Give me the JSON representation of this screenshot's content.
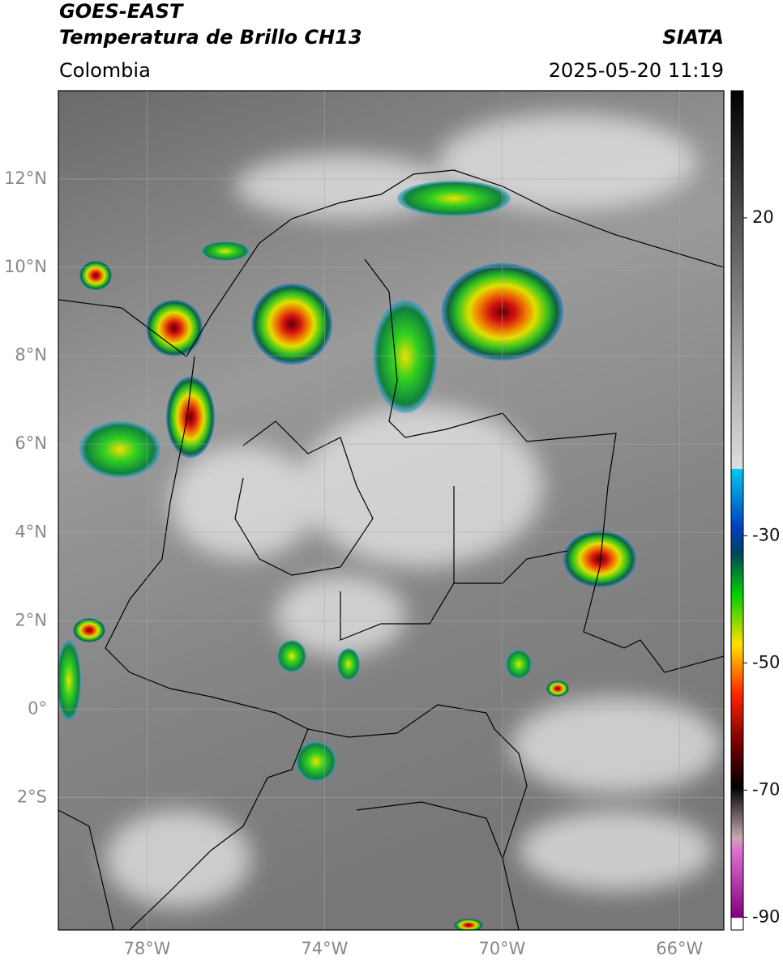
{
  "header": {
    "title": "GOES-EAST",
    "subtitle": "Temperatura de Brillo CH13",
    "source": "SIATA",
    "region": "Colombia",
    "timestamp": "2025-05-20 11:19"
  },
  "map": {
    "xlim": [
      -80,
      -65
    ],
    "ylim": [
      -5,
      14
    ],
    "xticks": [
      {
        "value": -78,
        "label": "78°W"
      },
      {
        "value": -74,
        "label": "74°W"
      },
      {
        "value": -70,
        "label": "70°W"
      },
      {
        "value": -66,
        "label": "66°W"
      }
    ],
    "yticks": [
      {
        "value": 12,
        "label": "12°N"
      },
      {
        "value": 10,
        "label": "10°N"
      },
      {
        "value": 8,
        "label": "8°N"
      },
      {
        "value": 6,
        "label": "6°N"
      },
      {
        "value": 4,
        "label": "4°N"
      },
      {
        "value": 2,
        "label": "2°N"
      },
      {
        "value": 0,
        "label": "0°"
      },
      {
        "value": -2,
        "label": "2°S"
      }
    ],
    "colorbar": {
      "lim": [
        -92,
        40
      ],
      "ticks": [
        20,
        -30,
        -50,
        -70,
        -90
      ]
    }
  }
}
